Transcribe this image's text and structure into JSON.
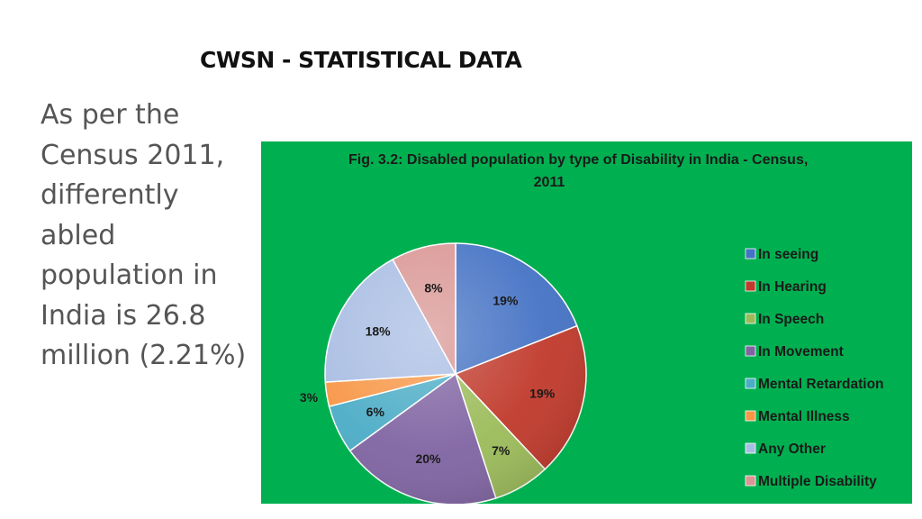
{
  "slide": {
    "title": "CWSN  - STATISTICAL DATA",
    "body_lines": [
      "As per the",
      "Census  2011,",
      "differently",
      "abled",
      "population  in",
      "India is 26.8",
      "million (2.21%)"
    ]
  },
  "figure": {
    "background_color": "#00b050"
  },
  "chart_data": {
    "type": "pie",
    "title": "Fig. 3.2:  Disabled population by type of Disability in India - Census,",
    "title_line2": "2011",
    "legend_position": "right",
    "start_angle": "12 o'clock, clockwise",
    "slices": [
      {
        "label": "In seeing",
        "value": 19,
        "display": "19%",
        "color": "#4472c4"
      },
      {
        "label": "In Hearing",
        "value": 19,
        "display": "19%",
        "color": "#c0392b"
      },
      {
        "label": "In Speech",
        "value": 7,
        "display": "7%",
        "color": "#9bbb59"
      },
      {
        "label": "In Movement",
        "value": 20,
        "display": "20%",
        "color": "#8064a2"
      },
      {
        "label": "Mental Retardation",
        "value": 6,
        "display": "6%",
        "color": "#4bacc6"
      },
      {
        "label": "Mental Illness",
        "value": 3,
        "display": "3%",
        "color": "#f79646"
      },
      {
        "label": "Any Other",
        "value": 18,
        "display": "18%",
        "color": "#a9bde3"
      },
      {
        "label": "Multiple Disability",
        "value": 8,
        "display": "8%",
        "color": "#d99694"
      }
    ]
  }
}
